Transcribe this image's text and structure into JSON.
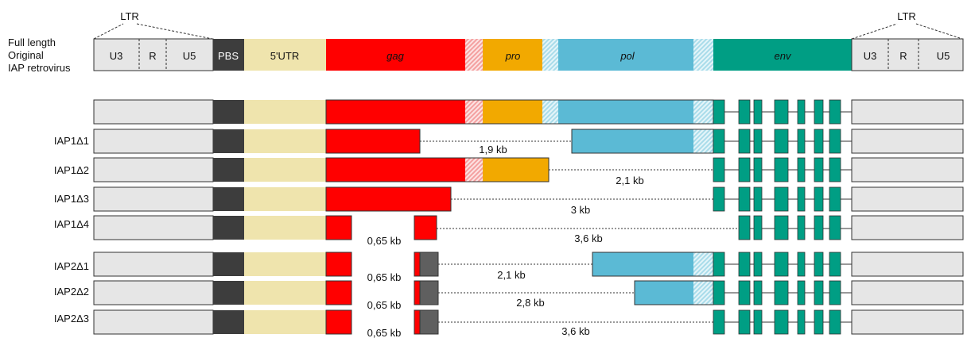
{
  "header": {
    "ltr_label": "LTR",
    "title_lines": [
      "Full length",
      "Original",
      "IAP retrovirus"
    ]
  },
  "segments": {
    "u3": "U3",
    "r": "R",
    "u5": "U5",
    "pbs": "PBS",
    "utr": "5'UTR",
    "gag": "gag",
    "pro": "pro",
    "pol": "pol",
    "env": "env"
  },
  "rows": [
    {
      "label": "",
      "deletion": ""
    },
    {
      "label": "IAP1Δ1",
      "deletion": "1,9 kb"
    },
    {
      "label": "IAP1Δ2",
      "deletion": "2,1 kb"
    },
    {
      "label": "IAP1Δ3",
      "deletion": "3 kb"
    },
    {
      "label": "IAP1Δ4",
      "deletion": "3,6 kb",
      "small_deletion": "0,65 kb"
    },
    {
      "label": "IAP2Δ1",
      "deletion": "2,1 kb",
      "small_deletion": "0,65 kb"
    },
    {
      "label": "IAP2Δ2",
      "deletion": "2,8 kb",
      "small_deletion": "0,65 kb"
    },
    {
      "label": "IAP2Δ3",
      "deletion": "3,6 kb",
      "small_deletion": "0,65 kb"
    }
  ],
  "colors": {
    "ltr": "#e6e6e6",
    "pbs": "#3d3d3d",
    "utr": "#efe4ad",
    "gag": "#ff0000",
    "pro": "#f2a900",
    "pol": "#5bbad5",
    "env": "#009e84",
    "stub": "#5f5f5f"
  }
}
